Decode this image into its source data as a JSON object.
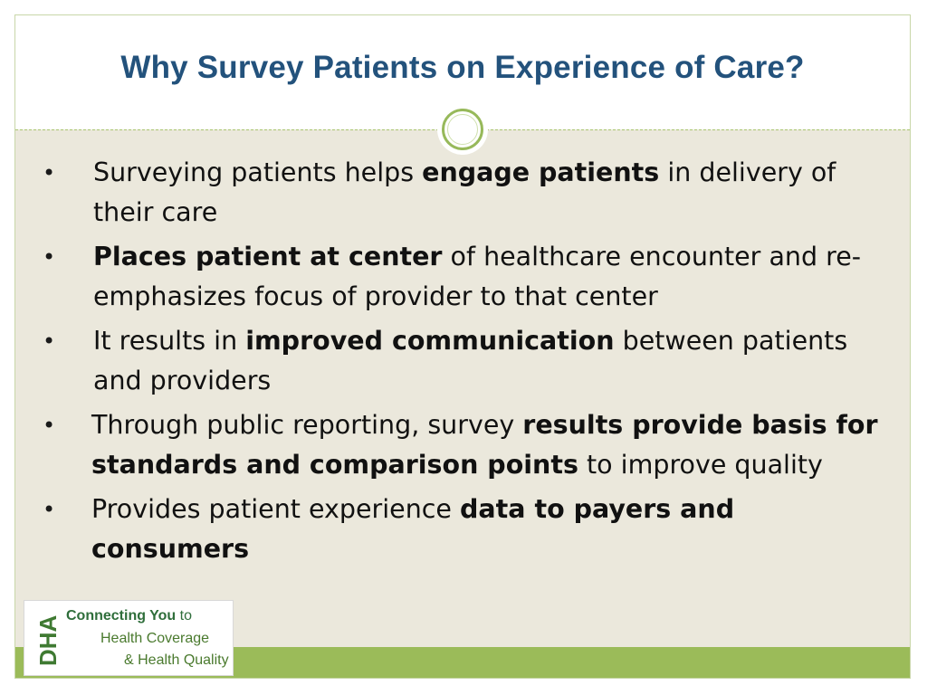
{
  "slide": {
    "title": "Why Survey Patients on Experience of Care?"
  },
  "bullets": [
    {
      "before": "Surveying patients helps ",
      "bold": "engage patients",
      "after": " in delivery of their care"
    },
    {
      "before": "",
      "bold": "Places patient at center",
      "after": " of healthcare encounter and re-emphasizes focus of provider to that center"
    },
    {
      "before": "It results in ",
      "bold": "improved communication",
      "after": " between patients and providers"
    },
    {
      "before": "Through public reporting, survey ",
      "bold": "results provide basis for standards and comparison points",
      "after": " to improve quality"
    },
    {
      "before": "Provides patient experience ",
      "bold": "data to payers and consumers",
      "after": ""
    }
  ],
  "bullet_symbol": "•",
  "logo": {
    "mark_text": "DHA",
    "line1_bold": "Connecting You",
    "line1_rest": " to",
    "line2": "Health Coverage",
    "line3": "& Health Quality"
  },
  "colors": {
    "title": "#23527c",
    "accent_green": "#9bbb59",
    "content_background": "#ebe8dc",
    "logo_green": "#3a6f2a"
  }
}
